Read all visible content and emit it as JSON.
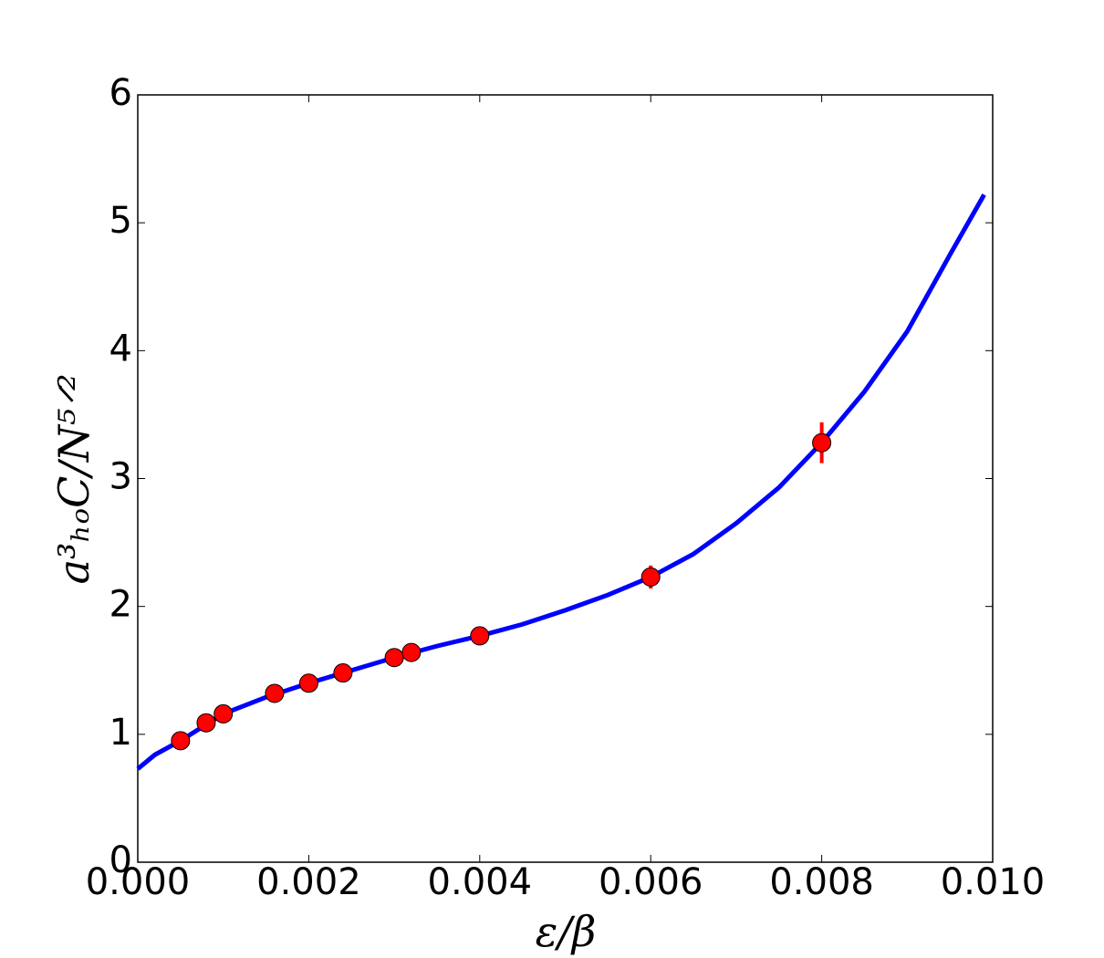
{
  "chart_data": {
    "type": "scatter",
    "xlabel": "ε/β",
    "ylabel": "a³ₕₒC/N⁵ᐟ²",
    "xlim": [
      0,
      0.01
    ],
    "ylim": [
      0,
      6
    ],
    "xticks": [
      {
        "value": 0,
        "label": "0.000"
      },
      {
        "value": 0.002,
        "label": "0.002"
      },
      {
        "value": 0.004,
        "label": "0.004"
      },
      {
        "value": 0.006,
        "label": "0.006"
      },
      {
        "value": 0.008,
        "label": "0.008"
      },
      {
        "value": 0.01,
        "label": "0.010"
      }
    ],
    "yticks": [
      0,
      1,
      2,
      3,
      4,
      5,
      6
    ],
    "fit": {
      "color": "#0000ff",
      "x": [
        0,
        0.0002,
        0.0005,
        0.001,
        0.0015,
        0.002,
        0.0025,
        0.003,
        0.0035,
        0.004,
        0.0045,
        0.005,
        0.0055,
        0.006,
        0.0065,
        0.007,
        0.0075,
        0.008,
        0.0085,
        0.009,
        0.0095,
        0.0099
      ],
      "values": [
        0.73,
        0.84,
        0.95,
        1.16,
        1.29,
        1.4,
        1.5,
        1.6,
        1.69,
        1.77,
        1.86,
        1.97,
        2.09,
        2.23,
        2.41,
        2.65,
        2.93,
        3.28,
        3.68,
        4.15,
        4.75,
        5.22
      ]
    },
    "points": {
      "color": "#ff0000",
      "x": [
        0.0005,
        0.0008,
        0.001,
        0.0016,
        0.002,
        0.0024,
        0.003,
        0.0032,
        0.004,
        0.006,
        0.008
      ],
      "values": [
        0.95,
        1.09,
        1.16,
        1.32,
        1.4,
        1.48,
        1.6,
        1.64,
        1.77,
        2.23,
        3.28
      ],
      "errors": [
        0.03,
        0.03,
        0.03,
        0.03,
        0.04,
        0.05,
        0.05,
        0.06,
        0.07,
        0.09,
        0.16
      ]
    }
  }
}
